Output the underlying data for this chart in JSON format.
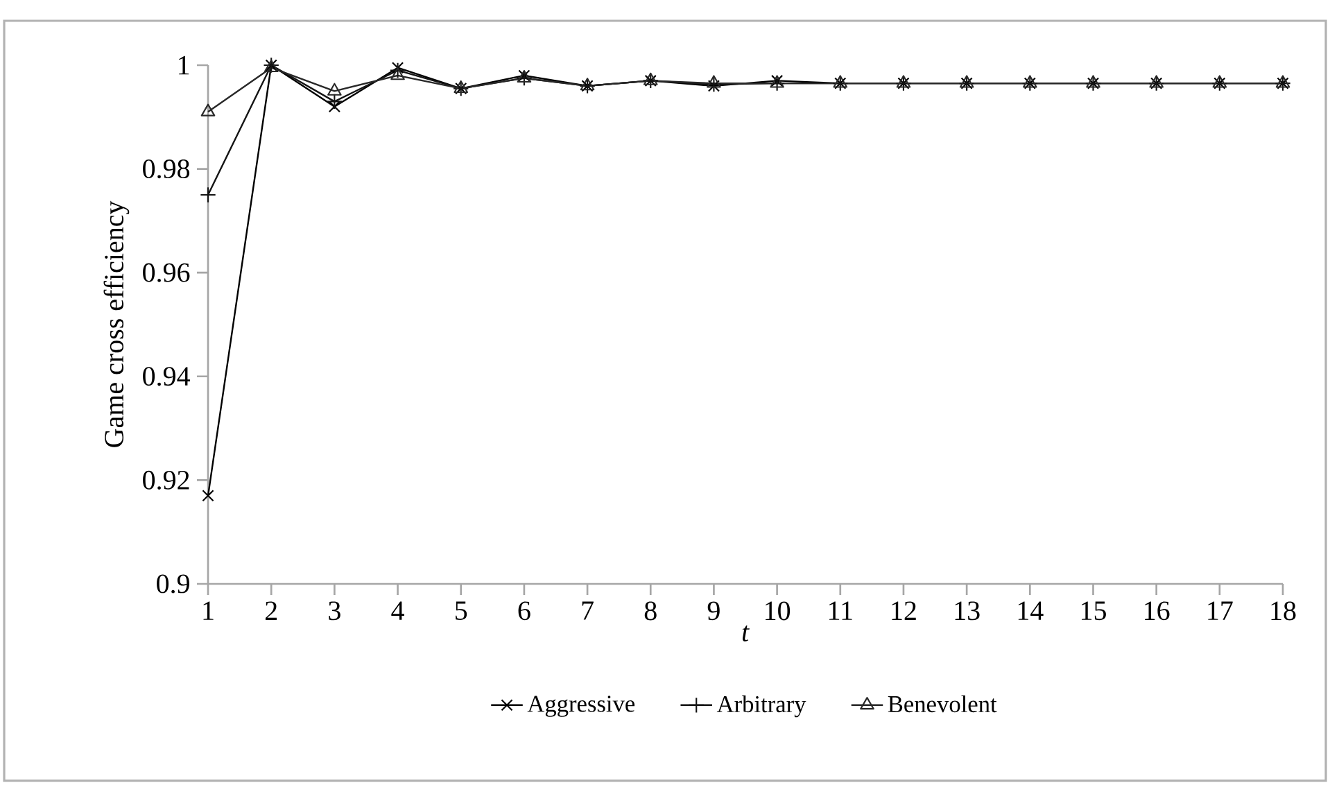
{
  "chart_data": {
    "type": "line",
    "xlabel": "*t*",
    "ylabel": "Game cross efficiency",
    "categories": [
      "1",
      "2",
      "3",
      "4",
      "5",
      "6",
      "7",
      "8",
      "9",
      "10",
      "11",
      "12",
      "13",
      "14",
      "15",
      "16",
      "17",
      "18"
    ],
    "ylim": [
      0.9,
      1.0
    ],
    "yticks": [
      0.9,
      0.92,
      0.94,
      0.96,
      0.98,
      {
        "value": 1.0,
        "label": "1"
      }
    ],
    "grid": false,
    "legend": "bottom",
    "line_style": "solid",
    "series": [
      {
        "name": "Aggressive",
        "color": "#000000",
        "marker": "cross",
        "values": [
          0.917,
          1.0,
          0.992,
          0.9995,
          0.9955,
          0.998,
          0.996,
          0.997,
          0.996,
          0.997,
          0.9965,
          0.9965,
          0.9965,
          0.9965,
          0.9965,
          0.9965,
          0.9965,
          0.9965
        ]
      },
      {
        "name": "Arbitrary",
        "color": "#141414",
        "marker": "plus",
        "values": [
          0.975,
          1.0,
          0.993,
          0.999,
          0.9955,
          0.9975,
          0.996,
          0.997,
          0.9963,
          0.9965,
          0.9965,
          0.9965,
          0.9965,
          0.9965,
          0.9965,
          0.9965,
          0.9965,
          0.9965
        ]
      },
      {
        "name": "Benevolent",
        "color": "#282828",
        "marker": "triangle",
        "values": [
          0.991,
          0.9995,
          0.995,
          0.998,
          0.9955,
          0.9975,
          0.996,
          0.997,
          0.9965,
          0.9965,
          0.9965,
          0.9965,
          0.9965,
          0.9965,
          0.9965,
          0.9965,
          0.9965,
          0.9965
        ]
      }
    ]
  }
}
